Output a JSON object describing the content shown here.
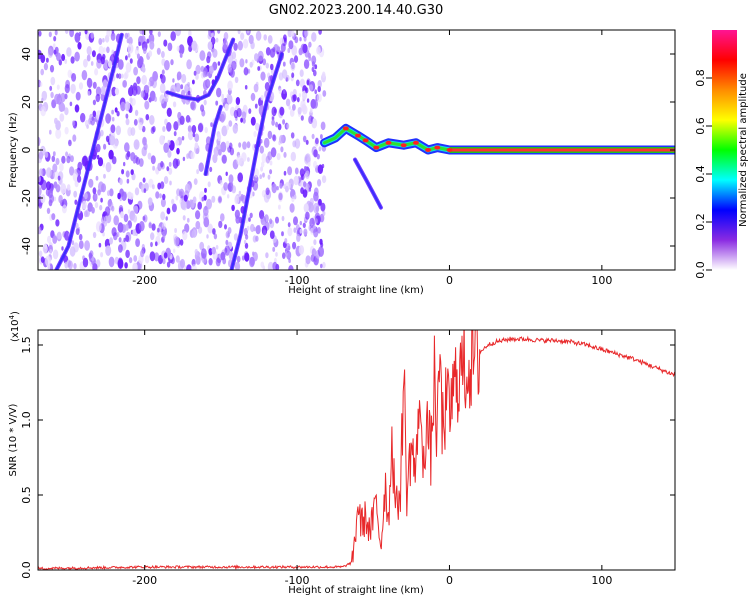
{
  "figure": {
    "title": "GN02.2023.200.14.40.G30"
  },
  "chart_data": [
    {
      "type": "heatmap",
      "xlabel": "Height of straight line (km)",
      "ylabel": "Frequency (Hz)",
      "xlim": [
        -270,
        148
      ],
      "ylim": [
        -50,
        50
      ],
      "xticks": [
        -200,
        -100,
        0,
        100
      ],
      "yticks": [
        -40,
        -20,
        0,
        20,
        40
      ],
      "xtick_labels": [
        "-200",
        "-100",
        "0",
        "100"
      ],
      "ytick_labels": [
        "-40",
        "-20",
        "0",
        "20",
        "40"
      ],
      "colorbar": {
        "label": "Normalized spectral amplitude",
        "range": [
          0,
          1
        ],
        "ticks": [
          0.0,
          0.2,
          0.4,
          0.6,
          0.8
        ],
        "tick_labels": [
          "0.0",
          "0.2",
          "0.4",
          "0.6",
          "0.8"
        ],
        "colors": [
          "#ffffff",
          "#8a2be2",
          "#0000ff",
          "#00ffff",
          "#00ff00",
          "#ffff00",
          "#ff8c00",
          "#ff0000",
          "#ff1493"
        ]
      },
      "noise_region": {
        "x_range": [
          -270,
          -82
        ],
        "amplitude": "0.0-0.2"
      },
      "traces": [
        {
          "name": "",
          "points": [
            [
              -258,
              -50
            ],
            [
              -250,
              -40
            ],
            [
              -244,
              -25
            ],
            [
              -238,
              -10
            ],
            [
              -232,
              5
            ],
            [
              -226,
              20
            ],
            [
              -220,
              35
            ],
            [
              -215,
              48
            ]
          ]
        },
        {
          "name": "",
          "points": [
            [
              -185,
              24
            ],
            [
              -175,
              22
            ],
            [
              -165,
              21
            ],
            [
              -158,
              23
            ],
            [
              -152,
              30
            ],
            [
              -147,
              38
            ],
            [
              -142,
              46
            ]
          ]
        },
        {
          "name": "",
          "points": [
            [
              -160,
              -10
            ],
            [
              -157,
              0
            ],
            [
              -154,
              10
            ],
            [
              -150,
              18
            ]
          ]
        },
        {
          "name": "",
          "points": [
            [
              -143,
              -50
            ],
            [
              -137,
              -35
            ],
            [
              -131,
              -15
            ],
            [
              -125,
              5
            ],
            [
              -120,
              20
            ],
            [
              -115,
              30
            ],
            [
              -110,
              40
            ]
          ]
        },
        {
          "name": "",
          "points": [
            [
              -82,
              3
            ],
            [
              -75,
              5
            ],
            [
              -68,
              9
            ],
            [
              -60,
              6
            ],
            [
              -55,
              4
            ],
            [
              -48,
              1
            ],
            [
              -40,
              3
            ],
            [
              -30,
              2
            ],
            [
              -22,
              3
            ],
            [
              -14,
              0
            ],
            [
              -8,
              1
            ],
            [
              0,
              0
            ],
            [
              20,
              0
            ],
            [
              60,
              0
            ],
            [
              100,
              0
            ],
            [
              148,
              0
            ]
          ]
        },
        {
          "name": "",
          "points": [
            [
              -62,
              -4
            ],
            [
              -55,
              -12
            ],
            [
              -50,
              -18
            ],
            [
              -45,
              -24
            ]
          ]
        }
      ]
    },
    {
      "type": "line",
      "xlabel": "Height of straight line (km)",
      "ylabel": "SNR (10 * V/V)",
      "yscale_note": "(x10",
      "yscale_exp": "4",
      "yscale_close": ")",
      "xlim": [
        -270,
        148
      ],
      "ylim": [
        0,
        1.6
      ],
      "xticks": [
        -200,
        -100,
        0,
        100
      ],
      "yticks": [
        0.0,
        0.5,
        1.0,
        1.5
      ],
      "xtick_labels": [
        "-200",
        "-100",
        "0",
        "100"
      ],
      "ytick_labels": [
        "0.0",
        "0.5",
        "1.0",
        "1.5"
      ],
      "series": [
        {
          "name": "",
          "color": "#e8282a",
          "x": [
            -270,
            -200,
            -150,
            -100,
            -70,
            -64,
            -62,
            -60,
            -58,
            -55,
            -52,
            -48,
            -45,
            -42,
            -40,
            -38,
            -35,
            -32,
            -30,
            -28,
            -25,
            -22,
            -20,
            -18,
            -15,
            -12,
            -10,
            -8,
            -6,
            -5,
            -4,
            -2,
            0,
            2,
            5,
            10,
            15,
            20,
            25,
            30,
            40,
            50,
            60,
            70,
            80,
            90,
            100,
            110,
            120,
            130,
            140,
            148
          ],
          "values": [
            0.01,
            0.02,
            0.02,
            0.02,
            0.02,
            0.05,
            0.2,
            0.45,
            0.3,
            0.35,
            0.25,
            0.45,
            0.15,
            0.6,
            0.3,
            0.9,
            0.4,
            0.55,
            1.35,
            0.5,
            0.85,
            0.6,
            1.25,
            0.7,
            1.0,
            0.75,
            1.3,
            0.85,
            1.55,
            0.9,
            1.0,
            1.1,
            1.05,
            1.15,
            1.3,
            1.35,
            1.4,
            1.45,
            1.5,
            1.52,
            1.54,
            1.54,
            1.53,
            1.53,
            1.52,
            1.5,
            1.47,
            1.44,
            1.41,
            1.37,
            1.33,
            1.3
          ]
        }
      ]
    }
  ]
}
